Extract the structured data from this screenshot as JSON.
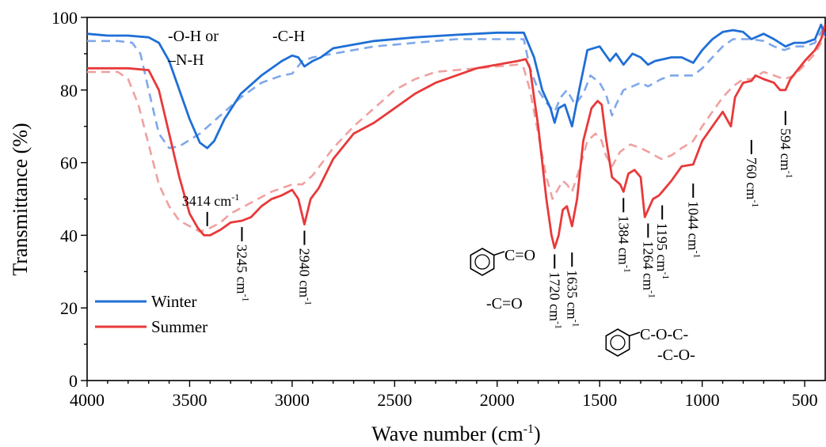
{
  "chart_data": {
    "type": "line",
    "xlabel": "Wave number (cm",
    "xlabel_sup": "-1",
    "xlabel_end": ")",
    "ylabel": "Transmittance (%)",
    "xlim": [
      4000,
      400
    ],
    "x_reversed": true,
    "ylim": [
      0,
      100
    ],
    "x_ticks": [
      4000,
      3500,
      3000,
      2500,
      2000,
      1500,
      1000,
      500
    ],
    "y_ticks": [
      0,
      20,
      40,
      60,
      80,
      100
    ],
    "legend_position": "bottom-left",
    "grid": false,
    "series": [
      {
        "name": "Winter",
        "color": "#1f6fd6",
        "style": "solid",
        "points": [
          [
            4000,
            95.5
          ],
          [
            3900,
            95
          ],
          [
            3800,
            95
          ],
          [
            3700,
            94.5
          ],
          [
            3650,
            93
          ],
          [
            3600,
            88
          ],
          [
            3550,
            80
          ],
          [
            3500,
            72
          ],
          [
            3450,
            65.5
          ],
          [
            3414,
            64
          ],
          [
            3380,
            66
          ],
          [
            3330,
            72
          ],
          [
            3250,
            79
          ],
          [
            3150,
            84
          ],
          [
            3050,
            88
          ],
          [
            3000,
            89.5
          ],
          [
            2970,
            89
          ],
          [
            2940,
            86.5
          ],
          [
            2900,
            88
          ],
          [
            2860,
            89
          ],
          [
            2800,
            91.5
          ],
          [
            2600,
            93.5
          ],
          [
            2400,
            94.5
          ],
          [
            2200,
            95.2
          ],
          [
            2000,
            95.8
          ],
          [
            1870,
            95.8
          ],
          [
            1820,
            89
          ],
          [
            1780,
            80
          ],
          [
            1740,
            75
          ],
          [
            1720,
            71
          ],
          [
            1700,
            75
          ],
          [
            1670,
            76
          ],
          [
            1635,
            70
          ],
          [
            1600,
            80
          ],
          [
            1560,
            91
          ],
          [
            1500,
            92
          ],
          [
            1450,
            88
          ],
          [
            1420,
            90
          ],
          [
            1384,
            87
          ],
          [
            1340,
            90
          ],
          [
            1300,
            89
          ],
          [
            1264,
            87
          ],
          [
            1230,
            88
          ],
          [
            1150,
            89
          ],
          [
            1100,
            89
          ],
          [
            1044,
            87.5
          ],
          [
            1000,
            91
          ],
          [
            950,
            94
          ],
          [
            900,
            96
          ],
          [
            850,
            96.5
          ],
          [
            800,
            96
          ],
          [
            760,
            94
          ],
          [
            700,
            95.5
          ],
          [
            650,
            94
          ],
          [
            594,
            92
          ],
          [
            550,
            93
          ],
          [
            500,
            93
          ],
          [
            450,
            94
          ],
          [
            420,
            98
          ],
          [
            400,
            95
          ]
        ]
      },
      {
        "name": "Winter (dashed)",
        "color": "#7fa8ea",
        "style": "dashed",
        "points": [
          [
            4000,
            93.5
          ],
          [
            3850,
            93.5
          ],
          [
            3780,
            93
          ],
          [
            3740,
            90
          ],
          [
            3700,
            80
          ],
          [
            3650,
            68
          ],
          [
            3600,
            64
          ],
          [
            3550,
            64.5
          ],
          [
            3450,
            68
          ],
          [
            3350,
            73
          ],
          [
            3250,
            78
          ],
          [
            3150,
            82
          ],
          [
            3050,
            84
          ],
          [
            3000,
            84.5
          ],
          [
            2950,
            88
          ],
          [
            2900,
            89
          ],
          [
            2800,
            90
          ],
          [
            2600,
            92
          ],
          [
            2400,
            93
          ],
          [
            2200,
            94
          ],
          [
            1950,
            94
          ],
          [
            1870,
            94
          ],
          [
            1840,
            86
          ],
          [
            1800,
            80
          ],
          [
            1760,
            76.5
          ],
          [
            1720,
            74
          ],
          [
            1690,
            78
          ],
          [
            1660,
            80
          ],
          [
            1620,
            76
          ],
          [
            1580,
            79
          ],
          [
            1545,
            84
          ],
          [
            1500,
            82
          ],
          [
            1470,
            79
          ],
          [
            1440,
            73
          ],
          [
            1420,
            76
          ],
          [
            1384,
            80
          ],
          [
            1340,
            81
          ],
          [
            1300,
            82
          ],
          [
            1264,
            81
          ],
          [
            1200,
            83
          ],
          [
            1150,
            84
          ],
          [
            1100,
            84
          ],
          [
            1044,
            84
          ],
          [
            1000,
            86
          ],
          [
            950,
            89
          ],
          [
            900,
            92
          ],
          [
            850,
            94
          ],
          [
            800,
            94
          ],
          [
            760,
            94
          ],
          [
            700,
            93.5
          ],
          [
            650,
            92
          ],
          [
            600,
            91
          ],
          [
            550,
            92
          ],
          [
            500,
            92
          ],
          [
            450,
            93
          ],
          [
            410,
            97
          ],
          [
            400,
            95
          ]
        ]
      },
      {
        "name": "Summer",
        "color": "#e8393a",
        "style": "solid",
        "points": [
          [
            4000,
            86
          ],
          [
            3900,
            86
          ],
          [
            3800,
            86
          ],
          [
            3700,
            85.5
          ],
          [
            3650,
            80
          ],
          [
            3600,
            68
          ],
          [
            3550,
            56
          ],
          [
            3500,
            46
          ],
          [
            3460,
            42
          ],
          [
            3430,
            40
          ],
          [
            3400,
            40
          ],
          [
            3350,
            41.5
          ],
          [
            3300,
            43.5
          ],
          [
            3245,
            44
          ],
          [
            3200,
            45
          ],
          [
            3150,
            48
          ],
          [
            3100,
            50
          ],
          [
            3050,
            51
          ],
          [
            3000,
            52.5
          ],
          [
            2970,
            50
          ],
          [
            2940,
            43
          ],
          [
            2910,
            50
          ],
          [
            2870,
            53
          ],
          [
            2800,
            61
          ],
          [
            2700,
            68
          ],
          [
            2600,
            71
          ],
          [
            2500,
            75
          ],
          [
            2400,
            79
          ],
          [
            2300,
            82
          ],
          [
            2200,
            84
          ],
          [
            2100,
            86
          ],
          [
            2000,
            87
          ],
          [
            1900,
            88
          ],
          [
            1860,
            88.5
          ],
          [
            1840,
            86
          ],
          [
            1800,
            70
          ],
          [
            1760,
            50
          ],
          [
            1735,
            40
          ],
          [
            1720,
            36.5
          ],
          [
            1700,
            40
          ],
          [
            1680,
            47
          ],
          [
            1660,
            48
          ],
          [
            1635,
            42.5
          ],
          [
            1610,
            50
          ],
          [
            1580,
            66
          ],
          [
            1540,
            75
          ],
          [
            1510,
            77
          ],
          [
            1490,
            76
          ],
          [
            1470,
            67
          ],
          [
            1440,
            56
          ],
          [
            1420,
            55
          ],
          [
            1400,
            54
          ],
          [
            1384,
            52
          ],
          [
            1360,
            57
          ],
          [
            1330,
            58
          ],
          [
            1300,
            56
          ],
          [
            1280,
            45
          ],
          [
            1264,
            47
          ],
          [
            1240,
            50
          ],
          [
            1210,
            51
          ],
          [
            1195,
            52
          ],
          [
            1150,
            55
          ],
          [
            1100,
            59
          ],
          [
            1044,
            59.5
          ],
          [
            1000,
            66
          ],
          [
            950,
            70
          ],
          [
            900,
            74
          ],
          [
            870,
            71
          ],
          [
            860,
            70
          ],
          [
            840,
            78
          ],
          [
            800,
            82
          ],
          [
            760,
            82.5
          ],
          [
            740,
            84
          ],
          [
            700,
            83
          ],
          [
            650,
            82
          ],
          [
            620,
            80
          ],
          [
            594,
            80
          ],
          [
            570,
            83
          ],
          [
            500,
            88
          ],
          [
            450,
            91
          ],
          [
            420,
            94
          ],
          [
            400,
            98
          ]
        ]
      },
      {
        "name": "Summer (dashed)",
        "color": "#f0a0a0",
        "style": "dashed",
        "points": [
          [
            4000,
            85
          ],
          [
            3850,
            85
          ],
          [
            3800,
            83
          ],
          [
            3750,
            76
          ],
          [
            3700,
            65
          ],
          [
            3650,
            54
          ],
          [
            3600,
            48
          ],
          [
            3550,
            44
          ],
          [
            3500,
            42.5
          ],
          [
            3450,
            41
          ],
          [
            3400,
            42
          ],
          [
            3350,
            43.5
          ],
          [
            3300,
            46
          ],
          [
            3200,
            49
          ],
          [
            3100,
            52
          ],
          [
            3000,
            54
          ],
          [
            2950,
            54
          ],
          [
            2900,
            56.5
          ],
          [
            2800,
            64
          ],
          [
            2700,
            70
          ],
          [
            2600,
            75
          ],
          [
            2500,
            80
          ],
          [
            2400,
            83
          ],
          [
            2300,
            85
          ],
          [
            2200,
            85.5
          ],
          [
            2100,
            86
          ],
          [
            2000,
            86.5
          ],
          [
            1900,
            87
          ],
          [
            1870,
            86
          ],
          [
            1840,
            80
          ],
          [
            1800,
            68
          ],
          [
            1760,
            56
          ],
          [
            1730,
            50
          ],
          [
            1700,
            53
          ],
          [
            1680,
            55
          ],
          [
            1660,
            54
          ],
          [
            1635,
            52
          ],
          [
            1600,
            58
          ],
          [
            1560,
            66
          ],
          [
            1520,
            68
          ],
          [
            1490,
            66
          ],
          [
            1470,
            62
          ],
          [
            1440,
            59
          ],
          [
            1400,
            63
          ],
          [
            1350,
            65
          ],
          [
            1300,
            64
          ],
          [
            1264,
            63
          ],
          [
            1200,
            61
          ],
          [
            1150,
            62
          ],
          [
            1100,
            64
          ],
          [
            1044,
            66
          ],
          [
            1000,
            70
          ],
          [
            950,
            74
          ],
          [
            900,
            78
          ],
          [
            850,
            81
          ],
          [
            800,
            83
          ],
          [
            760,
            83
          ],
          [
            700,
            85
          ],
          [
            650,
            84
          ],
          [
            600,
            83
          ],
          [
            550,
            84
          ],
          [
            500,
            87
          ],
          [
            450,
            90
          ],
          [
            400,
            95
          ]
        ]
      }
    ],
    "annotations": [
      {
        "label": "3414 cm",
        "sup": "-1",
        "x": 3414,
        "y": 46
      },
      {
        "label": "3245 cm",
        "sup": "-1",
        "x": 3245,
        "y": 44
      },
      {
        "label": "2940 cm",
        "sup": "-1",
        "x": 2940,
        "y": 43
      },
      {
        "label": "1720 cm",
        "sup": "-1",
        "x": 1720,
        "y": 36.5
      },
      {
        "label": "1635 cm",
        "sup": "-1",
        "x": 1635,
        "y": 37
      },
      {
        "label": "1384 cm",
        "sup": "-1",
        "x": 1384,
        "y": 52
      },
      {
        "label": "1264 cm",
        "sup": "-1",
        "x": 1264,
        "y": 45
      },
      {
        "label": "1195 cm",
        "sup": "-1",
        "x": 1195,
        "y": 50
      },
      {
        "label": "1044 cm",
        "sup": "-1",
        "x": 1044,
        "y": 56
      },
      {
        "label": "760 cm",
        "sup": "-1",
        "x": 760,
        "y": 68
      },
      {
        "label": "594 cm",
        "sup": "-1",
        "x": 594,
        "y": 76
      }
    ],
    "group_labels": {
      "oh": "-O-H or",
      "nh": "–N-H",
      "ch": "-C-H",
      "co_aryl": "C=O",
      "co": "-C=O",
      "coc": "C-O-C-",
      "co2": "-C-O-"
    },
    "legend": [
      {
        "label": "Winter",
        "color": "#1f6fd6"
      },
      {
        "label": "Summer",
        "color": "#e8393a"
      }
    ]
  }
}
